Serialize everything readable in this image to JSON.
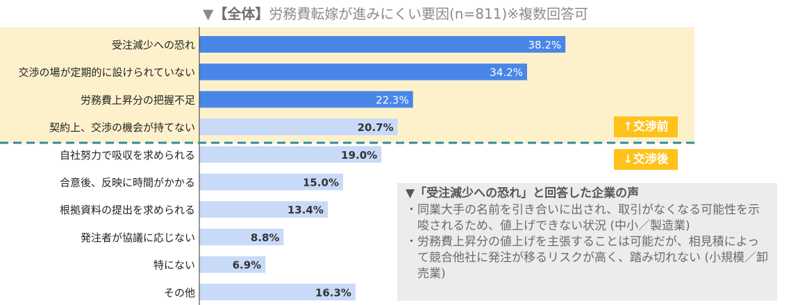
{
  "chart_data": {
    "type": "bar",
    "orientation": "horizontal",
    "title_marker": "▼",
    "title_bold": "【全体】",
    "title_rest": "労務費転嫁が進みにくい要因(n=811)※複数回答可",
    "categories": [
      "受注減少への恐れ",
      "交渉の場が定期的に設けられていない",
      "労務費上昇分の把握不足",
      "契約上、交渉の機会が持てない",
      "自社努力で吸収を求められる",
      "合意後、反映に時間がかかる",
      "根拠資料の提出を求められる",
      "発注者が協議に応じない",
      "特にない",
      "その他"
    ],
    "values": [
      38.2,
      34.2,
      22.3,
      20.7,
      19.0,
      15.0,
      13.4,
      8.8,
      6.9,
      16.3
    ],
    "value_labels": [
      "38.2%",
      "34.2%",
      "22.3%",
      "20.7%",
      "19.0%",
      "15.0%",
      "13.4%",
      "8.8%",
      "6.9%",
      "16.3%"
    ],
    "highlight_count": 3,
    "groups": {
      "before": "↑交渉前",
      "after": "↓交渉後",
      "before_count": 4
    },
    "xlim": [
      0,
      40
    ]
  },
  "colors": {
    "highlight_bar": "#4a86e8",
    "normal_bar": "#c9daf8",
    "before_band": "#fdf1cc",
    "divider": "#2e8b9a",
    "badge": "#ffc21a"
  },
  "voice_box": {
    "title": "▼「受注減少への恐れ」と回答した企業の声",
    "items": [
      "・同業大手の名前を引き合いに出され、取引がなくなる可能性を示唆されるため、値上げできない状況 (中小／製造業)",
      "・労務費上昇分の値上げを主張することは可能だが、相見積によって競合他社に発注が移るリスクが高く、踏み切れない (小規模／卸売業)"
    ]
  }
}
